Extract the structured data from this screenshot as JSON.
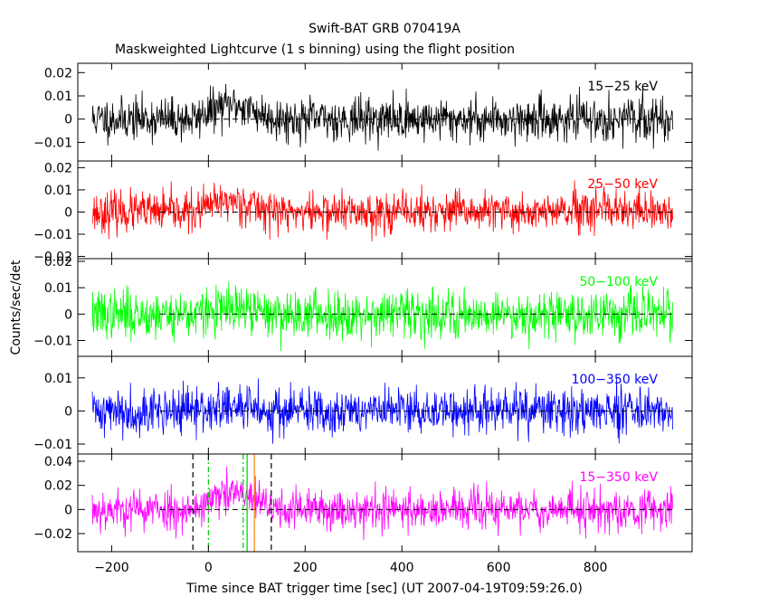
{
  "title": "Swift-BAT GRB 070419A",
  "subtitle": "Maskweighted Lightcurve (1 s binning) using the flight position",
  "ylabel": "Counts/sec/det",
  "xlabel": "Time since BAT trigger time [sec] (UT 2007-04-19T09:59:26.0)",
  "chart_data": {
    "type": "line",
    "title": "Swift-BAT GRB 070419A",
    "subtitle": "Maskweighted Lightcurve (1 s binning) using the flight position",
    "xlabel": "Time since BAT trigger time [sec] (UT 2007-04-19T09:59:26.0)",
    "ylabel": "Counts/sec/det",
    "xlim": [
      -270,
      1000
    ],
    "x_range_data": [
      -240,
      960
    ],
    "bin_seconds": 1,
    "x_ticks": [
      -200,
      0,
      200,
      400,
      600,
      800
    ],
    "x_tick_labels": [
      "−200",
      "0",
      "200",
      "400",
      "600",
      "800"
    ],
    "grid": false,
    "panels": [
      {
        "name": "15−25 keV",
        "color": "#000000",
        "ylim": [
          -0.018,
          0.024
        ],
        "y_ticks": [
          0.02,
          0.01,
          0,
          -0.01
        ],
        "y_tick_labels": [
          "0.02",
          "0.01",
          "0",
          "−0.01"
        ],
        "noise_sigma": 0.0045,
        "burst_peak": 0.006,
        "seed": 11
      },
      {
        "name": "25−50 keV",
        "color": "#ff0000",
        "ylim": [
          -0.021,
          0.023
        ],
        "y_ticks": [
          0.02,
          0.01,
          0,
          -0.01,
          -0.02
        ],
        "y_tick_labels": [
          "0.02",
          "0.01",
          "0",
          "−0.01",
          "−0.02"
        ],
        "noise_sigma": 0.0045,
        "burst_peak": 0.005,
        "seed": 23
      },
      {
        "name": "50−100 keV",
        "color": "#00ff00",
        "ylim": [
          -0.016,
          0.021
        ],
        "y_ticks": [
          0.02,
          0.01,
          0,
          -0.01
        ],
        "y_tick_labels": [
          "0.02",
          "0.01",
          "0",
          "−0.01"
        ],
        "noise_sigma": 0.0045,
        "burst_peak": 0.0015,
        "seed": 37
      },
      {
        "name": "100−350 keV",
        "color": "#0000ff",
        "ylim": [
          -0.013,
          0.0165
        ],
        "y_ticks": [
          0.01,
          0,
          -0.01
        ],
        "y_tick_labels": [
          "0.01",
          "0",
          "−0.01"
        ],
        "noise_sigma": 0.0035,
        "burst_peak": 0.001,
        "seed": 41
      },
      {
        "name": "15−350 keV",
        "color": "#ff00ff",
        "ylim": [
          -0.035,
          0.046
        ],
        "y_ticks": [
          0.04,
          0.02,
          0,
          -0.02
        ],
        "y_tick_labels": [
          "0.04",
          "0.02",
          "0",
          "−0.02"
        ],
        "noise_sigma": 0.0085,
        "burst_peak": 0.013,
        "seed": 53
      }
    ],
    "vertical_lines": [
      {
        "x": -32,
        "color": "#000000",
        "style": "dashed"
      },
      {
        "x": 0,
        "color": "#00cc00",
        "style": "dashdot"
      },
      {
        "x": 72,
        "color": "#00cc00",
        "style": "dashdot"
      },
      {
        "x": 80,
        "color": "#00cc00",
        "style": "solid"
      },
      {
        "x": 95,
        "color": "#ff8000",
        "style": "solid"
      },
      {
        "x": 130,
        "color": "#000000",
        "style": "dashed"
      }
    ]
  }
}
